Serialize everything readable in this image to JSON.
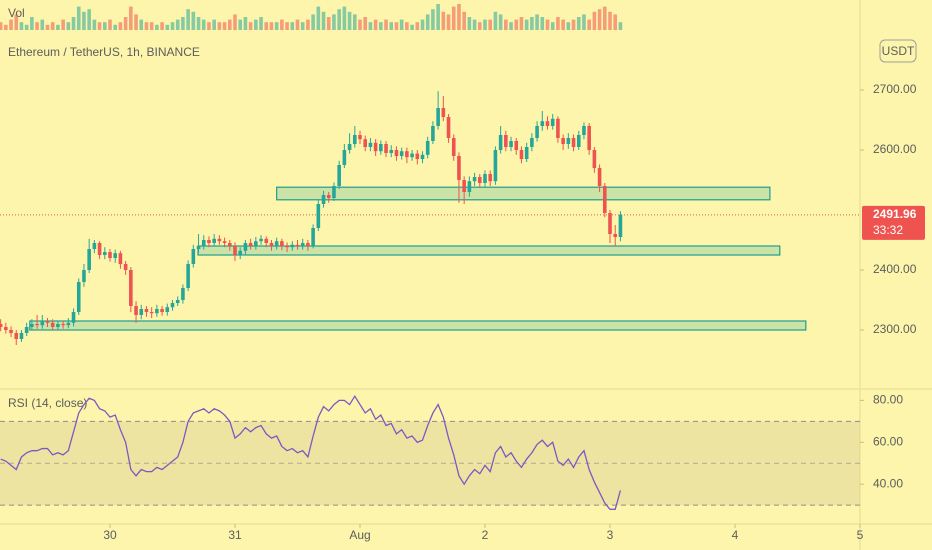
{
  "chart_data": {
    "type": "candlestick",
    "title": "Ethereum / TetherUS, 1h, BINANCE",
    "currency": "USDT",
    "volume_label": "Vol",
    "countdown": "33:32",
    "last_price": 2491.96,
    "colors": {
      "up": "#26a69a",
      "down": "#ef5350",
      "zone": "#1e9e8e"
    },
    "xlim": [
      -21.12,
      144
    ],
    "xticks": [
      {
        "value": 0,
        "label": "30"
      },
      {
        "value": 24,
        "label": "31"
      },
      {
        "value": 48,
        "label": "Aug"
      },
      {
        "value": 72,
        "label": "2"
      },
      {
        "value": 96,
        "label": "3"
      },
      {
        "value": 120,
        "label": "4"
      },
      {
        "value": 144,
        "label": "5"
      }
    ],
    "ylim": [
      2225,
      2850
    ],
    "yticks": [
      {
        "value": 2300,
        "label": "2300.00"
      },
      {
        "value": 2400,
        "label": "2400.00"
      },
      {
        "value": 2600,
        "label": "2600.00"
      },
      {
        "value": 2700,
        "label": "2700.00"
      }
    ],
    "x": [
      -21,
      -20,
      -19,
      -18,
      -17,
      -16,
      -15,
      -14,
      -13,
      -12,
      -11,
      -10,
      -9,
      -8,
      -7,
      -6,
      -5,
      -4,
      -3,
      -2,
      -1,
      0,
      1,
      2,
      3,
      4,
      5,
      6,
      7,
      8,
      9,
      10,
      11,
      12,
      13,
      14,
      15,
      16,
      17,
      18,
      19,
      20,
      21,
      22,
      23,
      24,
      25,
      26,
      27,
      28,
      29,
      30,
      31,
      32,
      33,
      34,
      35,
      36,
      37,
      38,
      39,
      40,
      41,
      42,
      43,
      44,
      45,
      46,
      47,
      48,
      49,
      50,
      51,
      52,
      53,
      54,
      55,
      56,
      57,
      58,
      59,
      60,
      61,
      62,
      63,
      64,
      65,
      66,
      67,
      68,
      69,
      70,
      71,
      72,
      73,
      74,
      75,
      76,
      77,
      78,
      79,
      80,
      81,
      82,
      83,
      84,
      85,
      86,
      87,
      88,
      89,
      90,
      91,
      92,
      93,
      94,
      95,
      96,
      97,
      98
    ],
    "open": [
      2310,
      2305,
      2300,
      2295,
      2285,
      2295,
      2305,
      2310,
      2308,
      2315,
      2312,
      2305,
      2310,
      2308,
      2312,
      2330,
      2380,
      2400,
      2435,
      2445,
      2425,
      2430,
      2420,
      2428,
      2410,
      2400,
      2340,
      2325,
      2335,
      2330,
      2328,
      2335,
      2330,
      2338,
      2345,
      2350,
      2370,
      2410,
      2435,
      2440,
      2450,
      2445,
      2452,
      2448,
      2445,
      2440,
      2425,
      2432,
      2445,
      2440,
      2448,
      2452,
      2445,
      2440,
      2448,
      2440,
      2438,
      2442,
      2440,
      2445,
      2440,
      2470,
      2510,
      2525,
      2520,
      2540,
      2575,
      2600,
      2610,
      2625,
      2618,
      2605,
      2612,
      2598,
      2610,
      2595,
      2600,
      2590,
      2598,
      2588,
      2594,
      2585,
      2592,
      2615,
      2640,
      2670,
      2655,
      2620,
      2590,
      2550,
      2530,
      2548,
      2555,
      2545,
      2560,
      2548,
      2600,
      2625,
      2605,
      2615,
      2600,
      2585,
      2605,
      2620,
      2640,
      2648,
      2640,
      2652,
      2620,
      2610,
      2620,
      2605,
      2625,
      2640,
      2600,
      2570,
      2540,
      2495,
      2460,
      2455
    ],
    "high": [
      2318,
      2312,
      2306,
      2300,
      2300,
      2312,
      2318,
      2325,
      2325,
      2320,
      2318,
      2316,
      2315,
      2320,
      2336,
      2386,
      2410,
      2452,
      2450,
      2448,
      2438,
      2435,
      2434,
      2432,
      2415,
      2405,
      2348,
      2342,
      2340,
      2338,
      2342,
      2340,
      2344,
      2350,
      2356,
      2376,
      2416,
      2442,
      2460,
      2458,
      2456,
      2460,
      2458,
      2454,
      2450,
      2446,
      2438,
      2450,
      2452,
      2455,
      2458,
      2456,
      2450,
      2454,
      2452,
      2446,
      2448,
      2450,
      2452,
      2450,
      2476,
      2516,
      2532,
      2530,
      2546,
      2582,
      2610,
      2628,
      2640,
      2632,
      2624,
      2620,
      2618,
      2616,
      2615,
      2608,
      2606,
      2604,
      2604,
      2600,
      2600,
      2598,
      2622,
      2648,
      2698,
      2690,
      2660,
      2626,
      2596,
      2556,
      2556,
      2562,
      2560,
      2566,
      2566,
      2606,
      2640,
      2632,
      2622,
      2620,
      2606,
      2612,
      2628,
      2648,
      2665,
      2656,
      2660,
      2656,
      2626,
      2628,
      2626,
      2632,
      2646,
      2645,
      2605,
      2576,
      2545,
      2500,
      2475,
      2498
    ],
    "low": [
      2298,
      2294,
      2288,
      2275,
      2280,
      2290,
      2300,
      2302,
      2302,
      2305,
      2300,
      2300,
      2302,
      2303,
      2306,
      2325,
      2372,
      2395,
      2428,
      2418,
      2418,
      2414,
      2412,
      2402,
      2392,
      2330,
      2312,
      2318,
      2322,
      2320,
      2322,
      2324,
      2324,
      2332,
      2340,
      2344,
      2365,
      2404,
      2428,
      2434,
      2438,
      2440,
      2442,
      2438,
      2432,
      2415,
      2418,
      2426,
      2434,
      2434,
      2442,
      2438,
      2432,
      2434,
      2433,
      2430,
      2432,
      2434,
      2434,
      2432,
      2436,
      2465,
      2504,
      2512,
      2515,
      2535,
      2570,
      2594,
      2604,
      2610,
      2598,
      2598,
      2590,
      2592,
      2588,
      2588,
      2582,
      2584,
      2578,
      2582,
      2576,
      2578,
      2586,
      2610,
      2634,
      2648,
      2612,
      2582,
      2512,
      2510,
      2522,
      2540,
      2538,
      2538,
      2540,
      2542,
      2594,
      2598,
      2598,
      2592,
      2578,
      2580,
      2598,
      2614,
      2632,
      2634,
      2634,
      2612,
      2600,
      2602,
      2598,
      2600,
      2618,
      2592,
      2562,
      2530,
      2488,
      2445,
      2440,
      2448
    ],
    "close": [
      2305,
      2300,
      2295,
      2285,
      2295,
      2305,
      2310,
      2308,
      2315,
      2312,
      2305,
      2310,
      2308,
      2312,
      2330,
      2380,
      2400,
      2435,
      2445,
      2425,
      2430,
      2420,
      2428,
      2410,
      2400,
      2340,
      2325,
      2335,
      2330,
      2328,
      2335,
      2330,
      2338,
      2345,
      2350,
      2370,
      2410,
      2435,
      2440,
      2450,
      2445,
      2452,
      2448,
      2445,
      2440,
      2425,
      2432,
      2445,
      2440,
      2448,
      2452,
      2445,
      2440,
      2448,
      2440,
      2438,
      2442,
      2440,
      2445,
      2440,
      2470,
      2510,
      2525,
      2520,
      2540,
      2575,
      2600,
      2610,
      2625,
      2618,
      2605,
      2612,
      2598,
      2610,
      2595,
      2600,
      2590,
      2598,
      2588,
      2594,
      2585,
      2592,
      2615,
      2640,
      2670,
      2655,
      2620,
      2590,
      2550,
      2530,
      2548,
      2555,
      2545,
      2560,
      2548,
      2600,
      2625,
      2605,
      2615,
      2600,
      2585,
      2605,
      2620,
      2640,
      2648,
      2640,
      2652,
      2620,
      2610,
      2620,
      2605,
      2625,
      2640,
      2600,
      2570,
      2540,
      2495,
      2460,
      2455,
      2492
    ],
    "volume": [
      3,
      2,
      4,
      6,
      3,
      2,
      5,
      3,
      4,
      2,
      3,
      2,
      4,
      3,
      5,
      9,
      7,
      8,
      4,
      3,
      3,
      4,
      2,
      3,
      5,
      9,
      6,
      4,
      3,
      3,
      2,
      3,
      2,
      3,
      4,
      5,
      8,
      7,
      5,
      4,
      3,
      4,
      3,
      3,
      4,
      6,
      4,
      5,
      3,
      4,
      5,
      3,
      3,
      3,
      4,
      3,
      3,
      4,
      3,
      4,
      6,
      9,
      7,
      5,
      6,
      8,
      9,
      7,
      6,
      4,
      5,
      3,
      4,
      3,
      4,
      3,
      3,
      4,
      3,
      2,
      3,
      4,
      6,
      8,
      10,
      7,
      6,
      9,
      10,
      7,
      5,
      4,
      3,
      4,
      4,
      7,
      6,
      4,
      3,
      4,
      5,
      4,
      5,
      6,
      5,
      4,
      3,
      5,
      4,
      3,
      4,
      5,
      6,
      4,
      7,
      8,
      9,
      7,
      6,
      3
    ],
    "zones": [
      {
        "x": [
          32,
          126.7
        ],
        "y": [
          2517,
          2538
        ]
      },
      {
        "x": [
          16.9,
          128.6
        ],
        "y": [
          2425,
          2440
        ]
      },
      {
        "x": [
          -15.4,
          133.6
        ],
        "y": [
          2300,
          2315
        ]
      }
    ],
    "rsi": {
      "label": "RSI (14, close)",
      "color": "#7e57c2",
      "ylim": [
        21,
        84
      ],
      "yticks": [
        {
          "value": 40,
          "label": "40.00"
        },
        {
          "value": 60,
          "label": "60.00"
        },
        {
          "value": 80,
          "label": "80.00"
        }
      ],
      "band": [
        30,
        70
      ],
      "midline": 50,
      "values": [
        52,
        51,
        49,
        47,
        53,
        55,
        56,
        56,
        57,
        57,
        54,
        55,
        54,
        56,
        65,
        74,
        78,
        81,
        80,
        76,
        75,
        72,
        73,
        66,
        60,
        47,
        44,
        47,
        46,
        46,
        48,
        47,
        49,
        51,
        53,
        60,
        70,
        74,
        75,
        76,
        74,
        76,
        75,
        73,
        70,
        62,
        64,
        67,
        65,
        67,
        68,
        64,
        62,
        63,
        58,
        56,
        57,
        55,
        56,
        53,
        63,
        72,
        77,
        75,
        78,
        80,
        80,
        78,
        82,
        78,
        74,
        76,
        71,
        73,
        68,
        69,
        64,
        66,
        62,
        63,
        60,
        61,
        68,
        74,
        78,
        72,
        62,
        54,
        44,
        40,
        44,
        47,
        45,
        49,
        46,
        55,
        58,
        53,
        55,
        51,
        48,
        52,
        55,
        59,
        61,
        58,
        60,
        51,
        49,
        52,
        48,
        53,
        56,
        47,
        41,
        36,
        31,
        28,
        28,
        37
      ]
    }
  }
}
